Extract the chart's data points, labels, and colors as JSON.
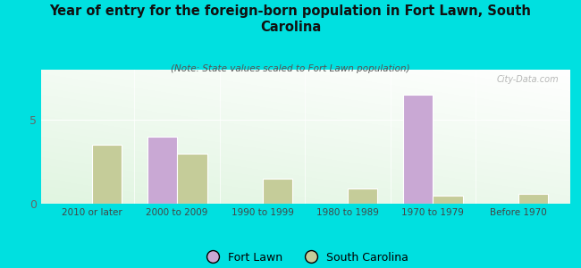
{
  "title": "Year of entry for the foreign-born population in Fort Lawn, South\nCarolina",
  "subtitle": "(Note: State values scaled to Fort Lawn population)",
  "categories": [
    "2010 or later",
    "2000 to 2009",
    "1990 to 1999",
    "1980 to 1989",
    "1970 to 1979",
    "Before 1970"
  ],
  "fort_lawn": [
    0,
    4.0,
    0,
    0,
    6.5,
    0
  ],
  "south_carolina": [
    3.5,
    3.0,
    1.5,
    0.9,
    0.5,
    0.6
  ],
  "fort_lawn_color": "#c9a8d4",
  "south_carolina_color": "#c5cc99",
  "background_color": "#00e0e0",
  "title_color": "#111111",
  "subtitle_color": "#555555",
  "bar_width": 0.35,
  "ylim_max": 8,
  "legend_fort_lawn": "Fort Lawn",
  "legend_sc": "South Carolina",
  "watermark": "City-Data.com"
}
